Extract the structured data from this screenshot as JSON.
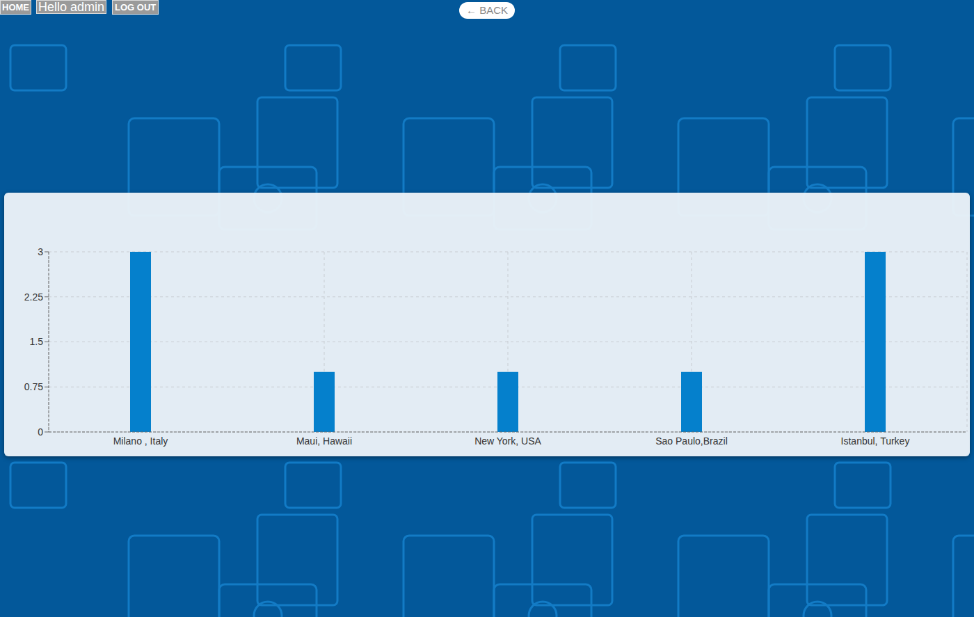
{
  "page": {
    "nav": [
      "HOME",
      "Hello admin",
      "LOG OUT"
    ],
    "back": "← BACK"
  },
  "chart_data": {
    "type": "bar",
    "categories": [
      "Milano , Italy",
      "Maui, Hawaii",
      "New York, USA",
      "Sao Paulo,Brazil",
      "Istanbul, Turkey"
    ],
    "values": [
      3,
      1,
      1,
      1,
      3
    ],
    "color": "#0580cc",
    "ylim": [
      0,
      3
    ],
    "yticks": [
      0,
      0.75,
      1.5,
      2.25,
      3
    ],
    "grid": true
  }
}
